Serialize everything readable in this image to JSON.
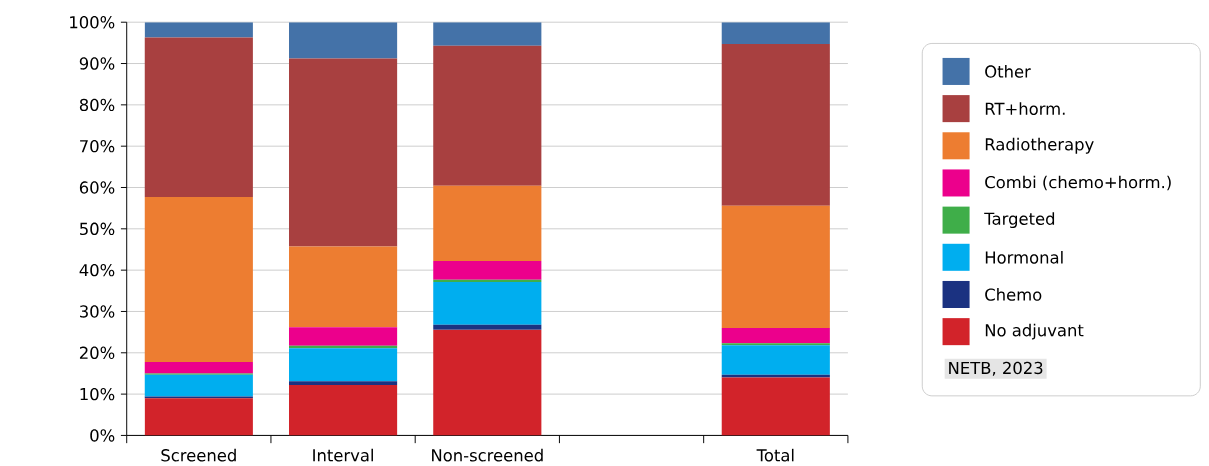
{
  "chart_data": {
    "type": "bar",
    "stacked": true,
    "categories": [
      "Screened",
      "Interval",
      "Non-screened",
      null,
      "Total"
    ],
    "series": [
      {
        "name": "No adjuvant",
        "color": "#d2232a",
        "values": [
          9.0,
          12.2,
          25.6,
          null,
          14.0
        ]
      },
      {
        "name": "Chemo",
        "color": "#1b3281",
        "values": [
          0.4,
          0.9,
          1.2,
          null,
          0.7
        ]
      },
      {
        "name": "Hormonal",
        "color": "#00aeef",
        "values": [
          5.3,
          8.0,
          10.3,
          null,
          7.1
        ]
      },
      {
        "name": "Targeted",
        "color": "#3fae49",
        "values": [
          0.3,
          0.6,
          0.6,
          null,
          0.5
        ]
      },
      {
        "name": "Combi (chemo+horm.)",
        "color": "#ec008c",
        "values": [
          2.8,
          4.5,
          4.5,
          null,
          3.7
        ]
      },
      {
        "name": "Radiotherapy",
        "color": "#ed7d31",
        "values": [
          39.9,
          19.5,
          18.2,
          null,
          29.6
        ]
      },
      {
        "name": "RT+horm.",
        "color": "#a84040",
        "values": [
          38.6,
          45.5,
          33.9,
          null,
          39.1
        ]
      },
      {
        "name": "Other",
        "color": "#4472a8",
        "values": [
          3.7,
          8.8,
          5.7,
          null,
          5.3
        ]
      }
    ],
    "ylim": [
      0,
      100
    ],
    "yticks": [
      {
        "value": 0,
        "label": "0%"
      },
      {
        "value": 10,
        "label": "10%"
      },
      {
        "value": 20,
        "label": "20%"
      },
      {
        "value": 30,
        "label": "30%"
      },
      {
        "value": 40,
        "label": "40%"
      },
      {
        "value": 50,
        "label": "50%"
      },
      {
        "value": 60,
        "label": "60%"
      },
      {
        "value": 70,
        "label": "70%"
      },
      {
        "value": 80,
        "label": "80%"
      },
      {
        "value": 90,
        "label": "90%"
      },
      {
        "value": 100,
        "label": "100%"
      }
    ],
    "grid": "y",
    "legend": "right",
    "annotations": [
      "NETB, 2023"
    ]
  }
}
